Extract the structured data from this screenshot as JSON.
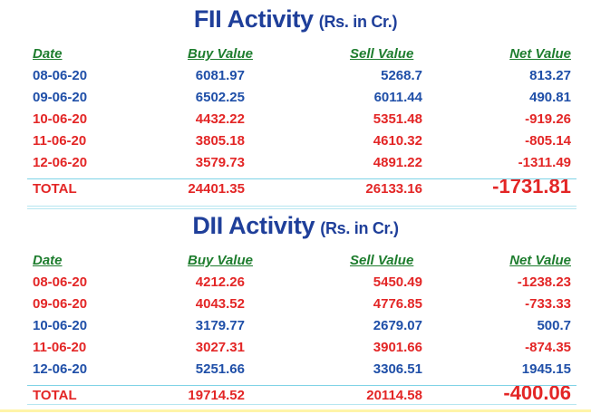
{
  "fii": {
    "title": "FII Activity",
    "subtitle": "(Rs. in Cr.)",
    "headers": {
      "date": "Date",
      "buy": "Buy Value",
      "sell": "Sell Value",
      "net": "Net Value"
    },
    "rows": [
      {
        "date": "08-06-20",
        "buy": "6081.97",
        "sell": "5268.7",
        "net": "813.27",
        "color": "blue"
      },
      {
        "date": "09-06-20",
        "buy": "6502.25",
        "sell": "6011.44",
        "net": "490.81",
        "color": "blue"
      },
      {
        "date": "10-06-20",
        "buy": "4432.22",
        "sell": "5351.48",
        "net": "-919.26",
        "color": "red"
      },
      {
        "date": "11-06-20",
        "buy": "3805.18",
        "sell": "4610.32",
        "net": "-805.14",
        "color": "red"
      },
      {
        "date": "12-06-20",
        "buy": "3579.73",
        "sell": "4891.22",
        "net": "-1311.49",
        "color": "red"
      }
    ],
    "total": {
      "label": "TOTAL",
      "buy": "24401.35",
      "sell": "26133.16",
      "net": "-1731.81"
    }
  },
  "dii": {
    "title": "DII Activity",
    "subtitle": "(Rs. in Cr.)",
    "headers": {
      "date": "Date",
      "buy": "Buy Value",
      "sell": "Sell Value",
      "net": "Net Value"
    },
    "rows": [
      {
        "date": "08-06-20",
        "buy": "4212.26",
        "sell": "5450.49",
        "net": "-1238.23",
        "color": "red"
      },
      {
        "date": "09-06-20",
        "buy": "4043.52",
        "sell": "4776.85",
        "net": "-733.33",
        "color": "red"
      },
      {
        "date": "10-06-20",
        "buy": "3179.77",
        "sell": "2679.07",
        "net": "500.7",
        "color": "blue"
      },
      {
        "date": "11-06-20",
        "buy": "3027.31",
        "sell": "3901.66",
        "net": "-874.35",
        "color": "red"
      },
      {
        "date": "12-06-20",
        "buy": "5251.66",
        "sell": "3306.51",
        "net": "1945.15",
        "color": "blue"
      }
    ],
    "total": {
      "label": "TOTAL",
      "buy": "19714.52",
      "sell": "20114.58",
      "net": "-400.06"
    }
  },
  "colors": {
    "title": "#1f3f9a",
    "header": "#1e7d2e",
    "positive": "#1f4fa8",
    "negative": "#e32626",
    "rule": "#7fd3e6"
  }
}
